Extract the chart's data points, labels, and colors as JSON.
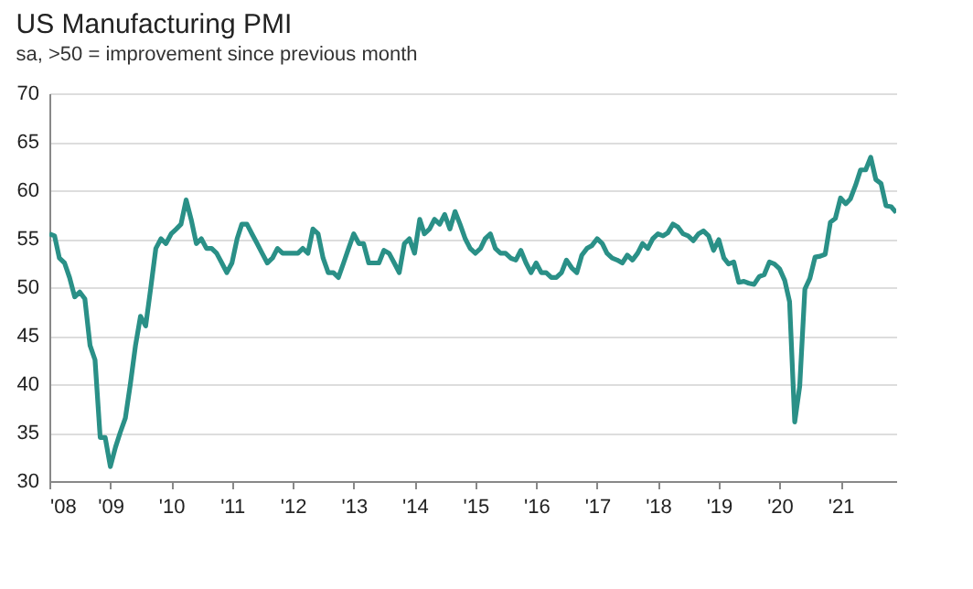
{
  "chart_data": {
    "type": "line",
    "title": "US Manufacturing PMI",
    "subtitle": "sa, >50 = improvement since previous month",
    "x": [
      "2008-01",
      "2008-02",
      "2008-03",
      "2008-04",
      "2008-05",
      "2008-06",
      "2008-07",
      "2008-08",
      "2008-09",
      "2008-10",
      "2008-11",
      "2008-12",
      "2009-01",
      "2009-02",
      "2009-03",
      "2009-04",
      "2009-05",
      "2009-06",
      "2009-07",
      "2009-08",
      "2009-09",
      "2009-10",
      "2009-11",
      "2009-12",
      "2010-01",
      "2010-02",
      "2010-03",
      "2010-04",
      "2010-05",
      "2010-06",
      "2010-07",
      "2010-08",
      "2010-09",
      "2010-10",
      "2010-11",
      "2010-12",
      "2011-01",
      "2011-02",
      "2011-03",
      "2011-04",
      "2011-05",
      "2011-06",
      "2011-07",
      "2011-08",
      "2011-09",
      "2011-10",
      "2011-11",
      "2011-12",
      "2012-01",
      "2012-02",
      "2012-03",
      "2012-04",
      "2012-05",
      "2012-06",
      "2012-07",
      "2012-08",
      "2012-09",
      "2012-10",
      "2012-11",
      "2012-12",
      "2013-01",
      "2013-02",
      "2013-03",
      "2013-04",
      "2013-05",
      "2013-06",
      "2013-07",
      "2013-08",
      "2013-09",
      "2013-10",
      "2013-11",
      "2013-12",
      "2014-01",
      "2014-02",
      "2014-03",
      "2014-04",
      "2014-05",
      "2014-06",
      "2014-07",
      "2014-08",
      "2014-09",
      "2014-10",
      "2014-11",
      "2014-12",
      "2015-01",
      "2015-02",
      "2015-03",
      "2015-04",
      "2015-05",
      "2015-06",
      "2015-07",
      "2015-08",
      "2015-09",
      "2015-10",
      "2015-11",
      "2015-12",
      "2016-01",
      "2016-02",
      "2016-03",
      "2016-04",
      "2016-05",
      "2016-06",
      "2016-07",
      "2016-08",
      "2016-09",
      "2016-10",
      "2016-11",
      "2016-12",
      "2017-01",
      "2017-02",
      "2017-03",
      "2017-04",
      "2017-05",
      "2017-06",
      "2017-07",
      "2017-08",
      "2017-09",
      "2017-10",
      "2017-11",
      "2017-12",
      "2018-01",
      "2018-02",
      "2018-03",
      "2018-04",
      "2018-05",
      "2018-06",
      "2018-07",
      "2018-08",
      "2018-09",
      "2018-10",
      "2018-11",
      "2018-12",
      "2019-01",
      "2019-02",
      "2019-03",
      "2019-04",
      "2019-05",
      "2019-06",
      "2019-07",
      "2019-08",
      "2019-09",
      "2019-10",
      "2019-11",
      "2019-12",
      "2020-01",
      "2020-02",
      "2020-03",
      "2020-04",
      "2020-05",
      "2020-06",
      "2020-07",
      "2020-08",
      "2020-09",
      "2020-10",
      "2020-11",
      "2020-12",
      "2021-01",
      "2021-02",
      "2021-03",
      "2021-04",
      "2021-05",
      "2021-06",
      "2021-07",
      "2021-08",
      "2021-09",
      "2021-10",
      "2021-11",
      "2021-12"
    ],
    "series": [
      {
        "color": "#2a9087",
        "values": [
          55.5,
          55.3,
          53,
          52.5,
          51,
          49,
          49.5,
          48.8,
          44,
          42.5,
          34.5,
          34.5,
          31.5,
          33.5,
          35,
          36.5,
          40,
          44,
          47,
          46,
          50,
          54,
          55,
          54.5,
          55.5,
          56,
          56.5,
          59,
          57,
          54.5,
          55,
          54,
          54,
          53.5,
          52.5,
          51.5,
          52.5,
          55,
          56.5,
          56.5,
          55.5,
          54.5,
          53.5,
          52.5,
          53,
          54,
          53.5,
          53.5,
          53.5,
          53.5,
          54,
          53.5,
          56,
          55.5,
          53,
          51.5,
          51.5,
          51,
          52.5,
          54,
          55.5,
          54.5,
          54.5,
          52.5,
          52.5,
          52.5,
          53.8,
          53.5,
          52.5,
          51.5,
          54.5,
          55,
          53.5,
          57,
          55.5,
          56,
          57,
          56.5,
          57.5,
          56,
          57.8,
          56.5,
          55,
          54,
          53.5,
          54,
          55,
          55.5,
          54,
          53.5,
          53.5,
          53,
          52.8,
          53.8,
          52.5,
          51.5,
          52.5,
          51.5,
          51.5,
          51,
          51,
          51.5,
          52.8,
          52,
          51.5,
          53.3,
          54,
          54.3,
          55,
          54.5,
          53.5,
          53,
          52.8,
          52.5,
          53.3,
          52.8,
          53.5,
          54.5,
          54,
          55,
          55.5,
          55.3,
          55.6,
          56.5,
          56.2,
          55.5,
          55.3,
          54.8,
          55.5,
          55.8,
          55.3,
          53.8,
          54.9,
          53,
          52.4,
          52.6,
          50.5,
          50.6,
          50.4,
          50.3,
          51.1,
          51.3,
          52.6,
          52.4,
          51.9,
          50.7,
          48.5,
          36.1,
          39.8,
          49.8,
          50.9,
          53.1,
          53.2,
          53.4,
          56.7,
          57.1,
          59.2,
          58.6,
          59.1,
          60.5,
          62.1,
          62.1,
          63.4,
          61.1,
          60.7,
          58.4,
          58.3,
          57.7
        ]
      }
    ],
    "xlim": [
      "2008-01",
      "2021-12"
    ],
    "xticks": [
      {
        "value": "2008",
        "label": "'08"
      },
      {
        "value": "2009",
        "label": "'09"
      },
      {
        "value": "2010",
        "label": "'10"
      },
      {
        "value": "2011",
        "label": "'11"
      },
      {
        "value": "2012",
        "label": "'12"
      },
      {
        "value": "2013",
        "label": "'13"
      },
      {
        "value": "2014",
        "label": "'14"
      },
      {
        "value": "2015",
        "label": "'15"
      },
      {
        "value": "2016",
        "label": "'16"
      },
      {
        "value": "2017",
        "label": "'17"
      },
      {
        "value": "2018",
        "label": "'18"
      },
      {
        "value": "2019",
        "label": "'19"
      },
      {
        "value": "2020",
        "label": "'20"
      },
      {
        "value": "2021",
        "label": "'21"
      }
    ],
    "ylim": [
      30,
      70
    ],
    "yticks": [
      30,
      35,
      40,
      45,
      50,
      55,
      60,
      65,
      70
    ],
    "grid": "y",
    "legend": false,
    "line_style": "solid",
    "marker": "none"
  }
}
